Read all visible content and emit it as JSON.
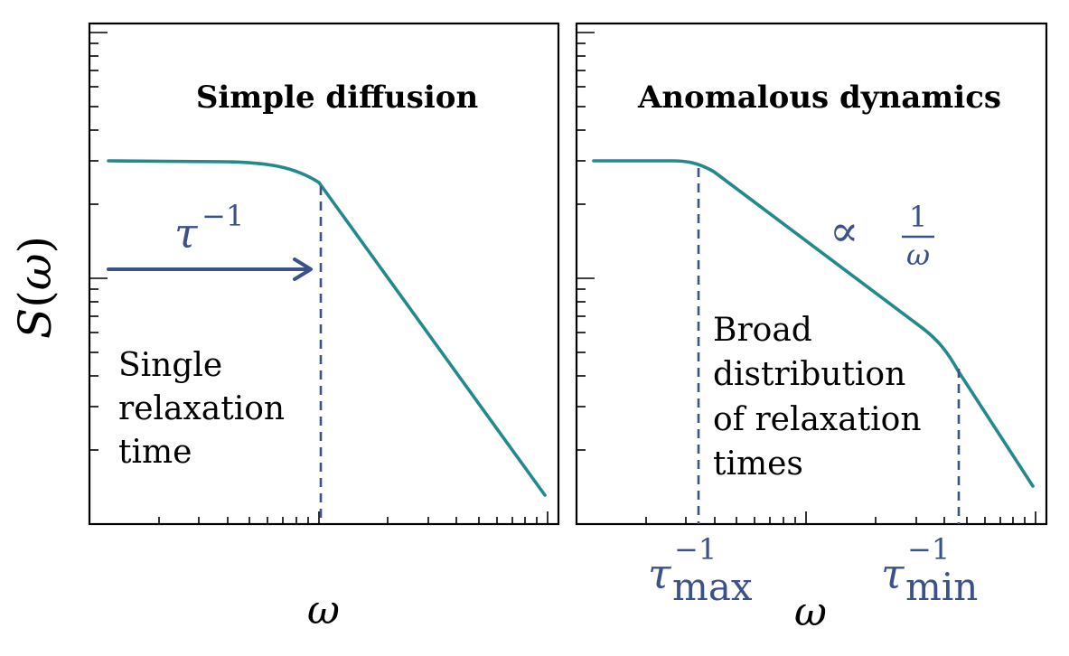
{
  "panels": {
    "left": {
      "title": "Simple diffusion",
      "annotation_lines": [
        "Single",
        "relaxation",
        "time"
      ],
      "tau_label": "τ",
      "tau_exponent": "−1"
    },
    "right": {
      "title": "Anomalous dynamics",
      "annotation_lines": [
        "Broad",
        "distribution",
        "of relaxation",
        "times"
      ],
      "proportional_symbol": "∝",
      "fraction_numerator": "1",
      "fraction_denominator": "ω",
      "tau_max": {
        "base": "τ",
        "exponent": "−1",
        "subscript": "max"
      },
      "tau_min": {
        "base": "τ",
        "exponent": "−1",
        "subscript": "min"
      }
    }
  },
  "axes": {
    "ylabel_S": "S",
    "ylabel_paren_open": "(",
    "ylabel_omega": "ω",
    "ylabel_paren_close": ")",
    "xlabel_left": "ω",
    "xlabel_right": "ω"
  },
  "colors": {
    "curve": "#23898c",
    "annotation": "#3b5288"
  }
}
